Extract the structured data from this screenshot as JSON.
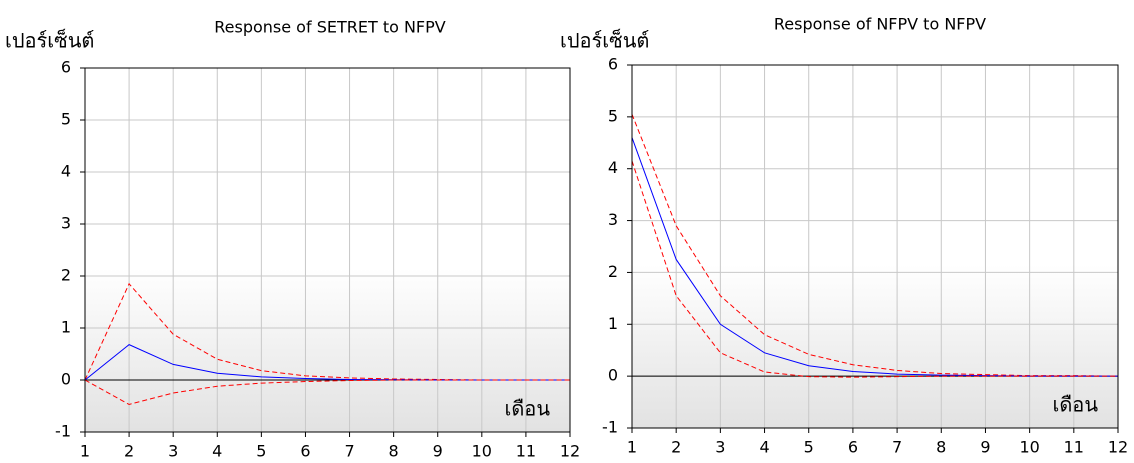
{
  "chart_data": [
    {
      "type": "line",
      "title": "Response of SETRET to NFPV",
      "y_label": "เปอร์เซ็นต์",
      "x_label": "เดือน",
      "x": [
        1,
        2,
        3,
        4,
        5,
        6,
        7,
        8,
        9,
        10,
        11,
        12
      ],
      "xlim": [
        1,
        12
      ],
      "xticks": [
        1,
        2,
        3,
        4,
        5,
        6,
        7,
        8,
        9,
        10,
        11,
        12
      ],
      "ylim": [
        -1,
        6
      ],
      "yticks": [
        -1,
        0,
        1,
        2,
        3,
        4,
        5,
        6
      ],
      "grid": true,
      "series": [
        {
          "color": "#ff0000",
          "style": "dashed",
          "values": [
            0,
            1.85,
            0.88,
            0.4,
            0.18,
            0.08,
            0.04,
            0.02,
            0.01,
            0,
            0,
            0
          ]
        },
        {
          "color": "#0000ff",
          "style": "solid",
          "values": [
            0,
            0.68,
            0.3,
            0.13,
            0.06,
            0.03,
            0.01,
            0.005,
            0,
            0,
            0,
            0
          ]
        },
        {
          "color": "#ff0000",
          "style": "dashed",
          "values": [
            0,
            -0.47,
            -0.25,
            -0.12,
            -0.06,
            -0.03,
            -0.01,
            0,
            0,
            0,
            0,
            0
          ]
        }
      ]
    },
    {
      "type": "line",
      "title": "Response of NFPV to NFPV",
      "y_label": "เปอร์เซ็นต์",
      "x_label": "เดือน",
      "x": [
        1,
        2,
        3,
        4,
        5,
        6,
        7,
        8,
        9,
        10,
        11,
        12
      ],
      "xlim": [
        1,
        12
      ],
      "xticks": [
        1,
        2,
        3,
        4,
        5,
        6,
        7,
        8,
        9,
        10,
        11,
        12
      ],
      "ylim": [
        -1,
        6
      ],
      "yticks": [
        -1,
        0,
        1,
        2,
        3,
        4,
        5,
        6
      ],
      "grid": true,
      "series": [
        {
          "color": "#ff0000",
          "style": "dashed",
          "values": [
            5.05,
            2.9,
            1.55,
            0.8,
            0.42,
            0.22,
            0.11,
            0.05,
            0.03,
            0.01,
            0.01,
            0
          ]
        },
        {
          "color": "#0000ff",
          "style": "solid",
          "values": [
            4.6,
            2.25,
            1.0,
            0.45,
            0.2,
            0.09,
            0.04,
            0.02,
            0.01,
            0,
            0,
            0
          ]
        },
        {
          "color": "#ff0000",
          "style": "dashed",
          "values": [
            4.15,
            1.55,
            0.45,
            0.08,
            -0.01,
            -0.02,
            -0.01,
            0,
            0,
            0,
            0,
            0
          ]
        }
      ]
    }
  ]
}
